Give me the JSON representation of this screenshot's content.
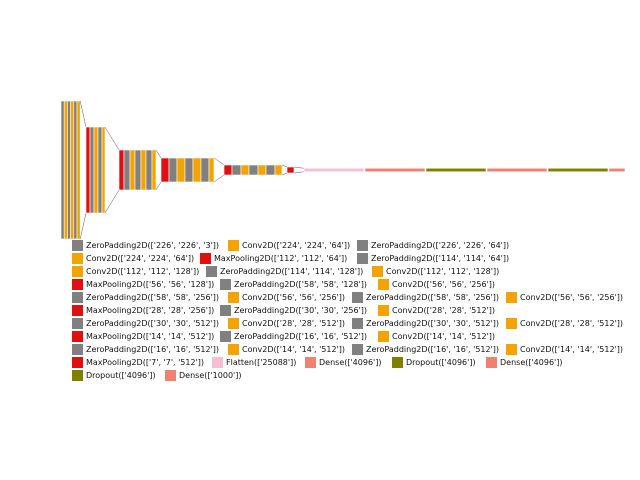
{
  "colors": {
    "ZeroPadding2D": "#808080",
    "Conv2D": "#f4a300",
    "MaxPooling2D": "#e01010",
    "Flatten": "#f7bdd0",
    "Dense": "#f08070",
    "Dropout": "#7f7f00"
  },
  "legend": [
    {
      "type": "ZeroPadding2D",
      "label": "ZeroPadding2D(['226', '226', '3'])"
    },
    {
      "type": "Conv2D",
      "label": "Conv2D(['224', '224', '64'])"
    },
    {
      "type": "ZeroPadding2D",
      "label": "ZeroPadding2D(['226', '226', '64'])"
    },
    {
      "type": "Conv2D",
      "label": "Conv2D(['224', '224', '64'])"
    },
    {
      "type": "MaxPooling2D",
      "label": "MaxPooling2D(['112', '112', '64'])"
    },
    {
      "type": "ZeroPadding2D",
      "label": "ZeroPadding2D(['114', '114', '64'])"
    },
    {
      "type": "Conv2D",
      "label": "Conv2D(['112', '112', '128'])"
    },
    {
      "type": "ZeroPadding2D",
      "label": "ZeroPadding2D(['114', '114', '128'])"
    },
    {
      "type": "Conv2D",
      "label": "Conv2D(['112', '112', '128'])"
    },
    {
      "type": "MaxPooling2D",
      "label": "MaxPooling2D(['56', '56', '128'])"
    },
    {
      "type": "ZeroPadding2D",
      "label": "ZeroPadding2D(['58', '58', '128'])"
    },
    {
      "type": "Conv2D",
      "label": "Conv2D(['56', '56', '256'])"
    },
    {
      "type": "ZeroPadding2D",
      "label": "ZeroPadding2D(['58', '58', '256'])"
    },
    {
      "type": "Conv2D",
      "label": "Conv2D(['56', '56', '256'])"
    },
    {
      "type": "ZeroPadding2D",
      "label": "ZeroPadding2D(['58', '58', '256'])"
    },
    {
      "type": "Conv2D",
      "label": "Conv2D(['56', '56', '256'])"
    },
    {
      "type": "MaxPooling2D",
      "label": "MaxPooling2D(['28', '28', '256'])"
    },
    {
      "type": "ZeroPadding2D",
      "label": "ZeroPadding2D(['30', '30', '256'])"
    },
    {
      "type": "Conv2D",
      "label": "Conv2D(['28', '28', '512'])"
    },
    {
      "type": "ZeroPadding2D",
      "label": "ZeroPadding2D(['30', '30', '512'])"
    },
    {
      "type": "Conv2D",
      "label": "Conv2D(['28', '28', '512'])"
    },
    {
      "type": "ZeroPadding2D",
      "label": "ZeroPadding2D(['30', '30', '512'])"
    },
    {
      "type": "Conv2D",
      "label": "Conv2D(['28', '28', '512'])"
    },
    {
      "type": "MaxPooling2D",
      "label": "MaxPooling2D(['14', '14', '512'])"
    },
    {
      "type": "ZeroPadding2D",
      "label": "ZeroPadding2D(['16', '16', '512'])"
    },
    {
      "type": "Conv2D",
      "label": "Conv2D(['14', '14', '512'])"
    },
    {
      "type": "ZeroPadding2D",
      "label": "ZeroPadding2D(['16', '16', '512'])"
    },
    {
      "type": "Conv2D",
      "label": "Conv2D(['14', '14', '512'])"
    },
    {
      "type": "ZeroPadding2D",
      "label": "ZeroPadding2D(['16', '16', '512'])"
    },
    {
      "type": "Conv2D",
      "label": "Conv2D(['14', '14', '512'])"
    },
    {
      "type": "MaxPooling2D",
      "label": "MaxPooling2D(['7', '7', '512'])"
    },
    {
      "type": "Flatten",
      "label": "Flatten(['25088'])"
    },
    {
      "type": "Dense",
      "label": "Dense(['4096'])"
    },
    {
      "type": "Dropout",
      "label": "Dropout(['4096'])"
    },
    {
      "type": "Dense",
      "label": "Dense(['4096'])"
    },
    {
      "type": "Dropout",
      "label": "Dropout(['4096'])"
    },
    {
      "type": "Dense",
      "label": "Dense(['1000'])"
    }
  ]
}
